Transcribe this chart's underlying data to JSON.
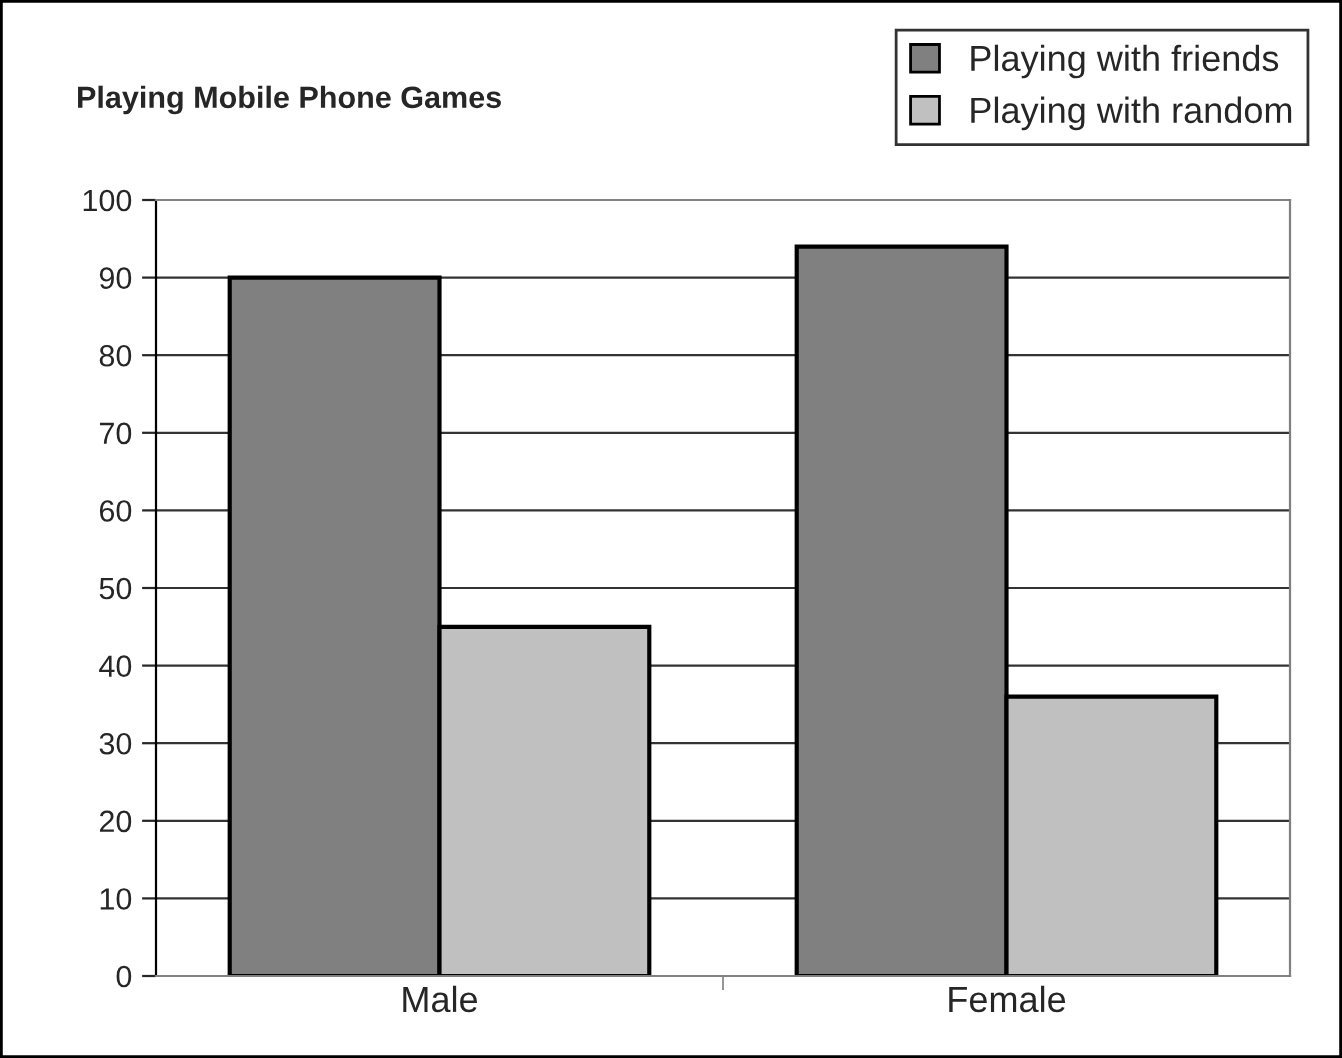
{
  "chart_data": {
    "type": "bar",
    "title": "Playing Mobile Phone Games",
    "categories": [
      "Male",
      "Female"
    ],
    "series": [
      {
        "name": "Playing with friends",
        "color": "#808080",
        "values": [
          90,
          94
        ]
      },
      {
        "name": "Playing with random",
        "color": "#c0c0c0",
        "values": [
          45,
          36
        ]
      }
    ],
    "ylim": [
      0,
      100
    ],
    "yticks": [
      0,
      10,
      20,
      30,
      40,
      50,
      60,
      70,
      80,
      90,
      100
    ],
    "grid": "y",
    "legend": "top right"
  }
}
